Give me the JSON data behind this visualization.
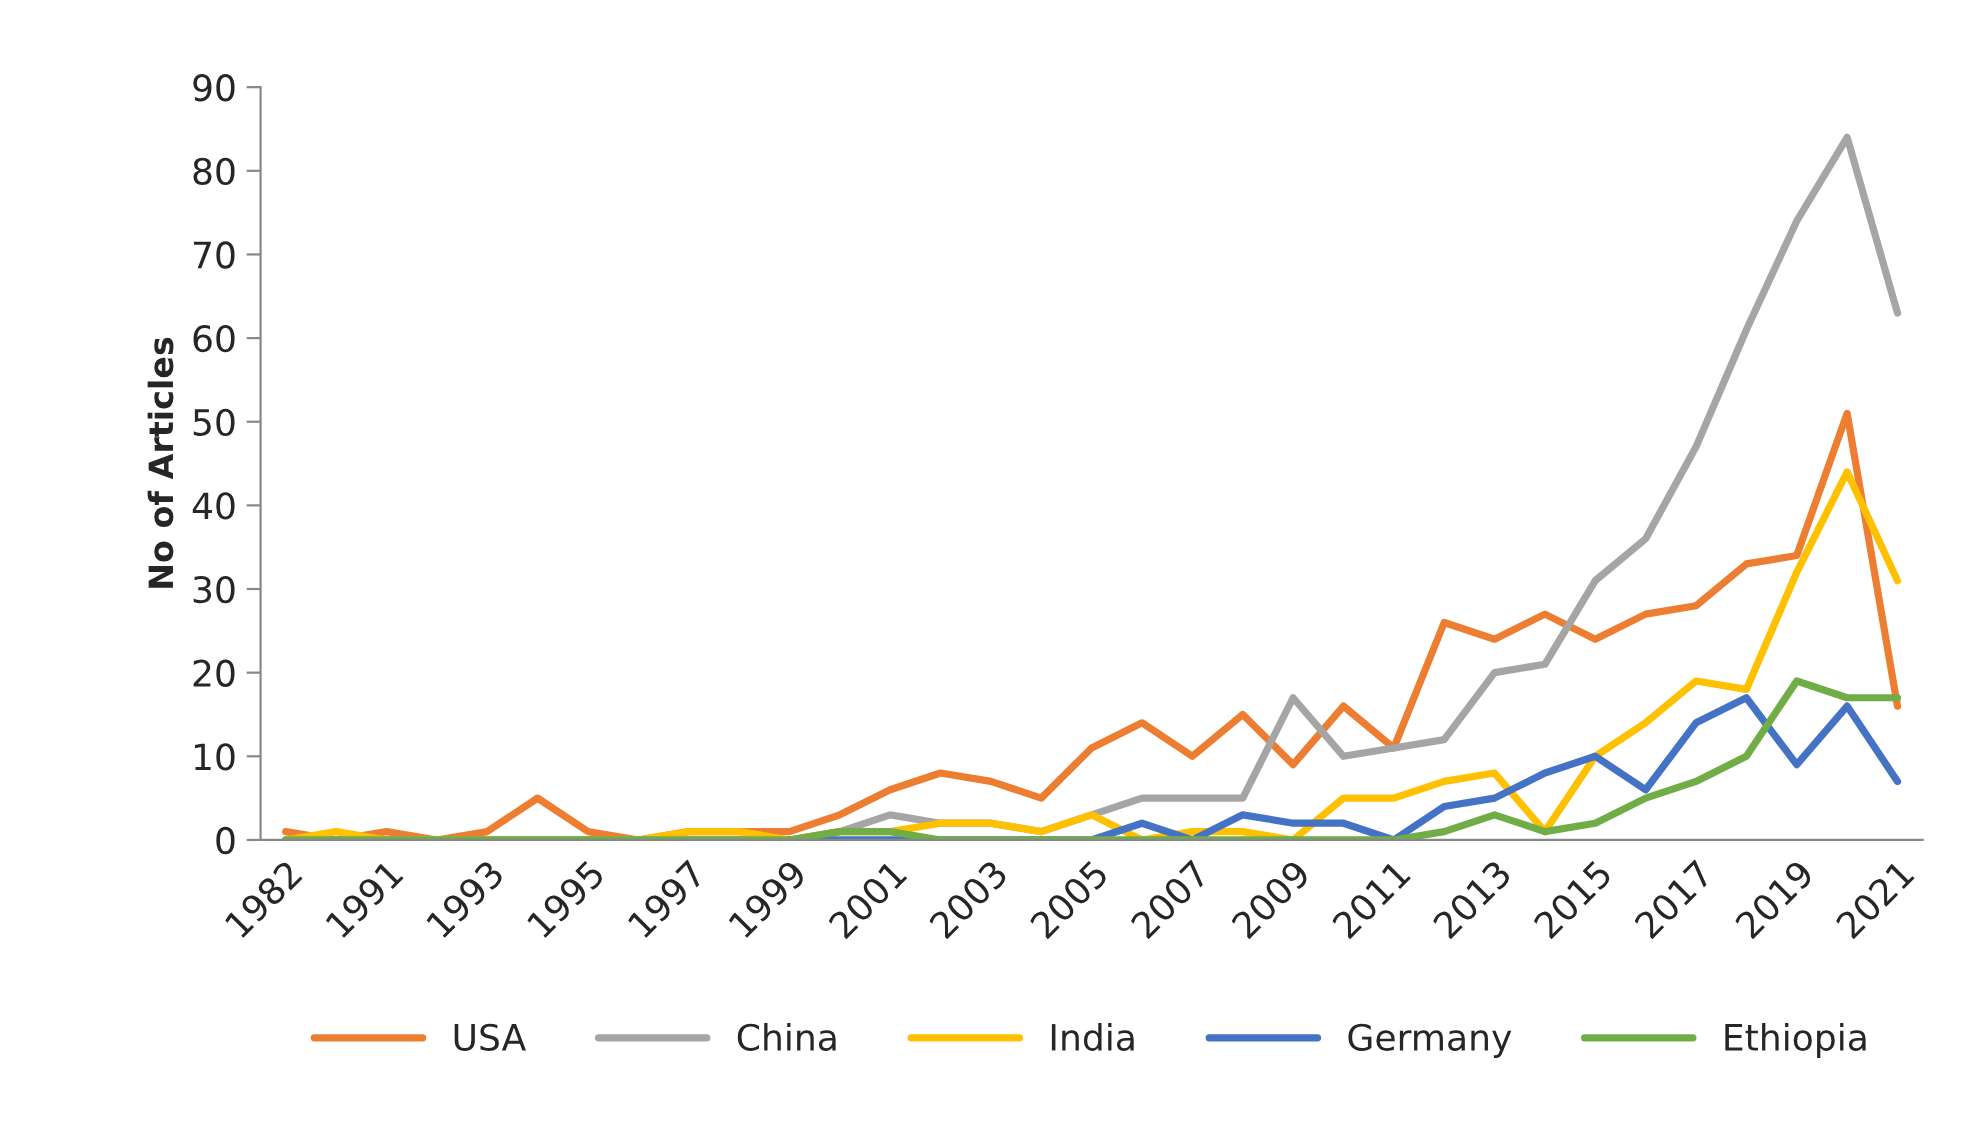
{
  "chart_data": {
    "type": "line",
    "ylabel": "No of Articles",
    "categories": [
      "1982",
      null,
      "1991",
      null,
      "1993",
      null,
      "1995",
      null,
      "1997",
      null,
      "1999",
      null,
      "2001",
      null,
      "2003",
      null,
      "2005",
      null,
      "2007",
      null,
      "2009",
      null,
      "2011",
      null,
      "2013",
      null,
      "2015",
      null,
      "2017",
      null,
      "2019",
      null,
      "2021"
    ],
    "series": [
      {
        "name": "USA",
        "color": "#ed7d31",
        "values": [
          1,
          0,
          1,
          0,
          1,
          5,
          1,
          0,
          1,
          1,
          1,
          3,
          6,
          8,
          7,
          5,
          11,
          14,
          10,
          15,
          9,
          16,
          11,
          26,
          24,
          27,
          24,
          27,
          28,
          33,
          34,
          51,
          16
        ]
      },
      {
        "name": "China",
        "color": "#a5a5a5",
        "values": [
          0,
          0,
          0,
          0,
          0,
          0,
          0,
          0,
          0,
          0,
          0,
          1,
          3,
          2,
          2,
          1,
          3,
          5,
          5,
          5,
          17,
          10,
          11,
          12,
          20,
          21,
          31,
          36,
          47,
          61,
          74,
          84,
          63
        ]
      },
      {
        "name": "India",
        "color": "#ffc000",
        "values": [
          0,
          1,
          0,
          0,
          0,
          0,
          0,
          0,
          1,
          1,
          0,
          1,
          1,
          2,
          2,
          1,
          3,
          0,
          1,
          1,
          0,
          5,
          5,
          7,
          8,
          1,
          10,
          14,
          19,
          18,
          32,
          44,
          31
        ]
      },
      {
        "name": "Germany",
        "color": "#4472c4",
        "values": [
          null,
          null,
          null,
          null,
          null,
          null,
          null,
          null,
          null,
          null,
          0,
          0,
          0,
          0,
          0,
          0,
          0,
          2,
          0,
          3,
          2,
          2,
          0,
          4,
          5,
          8,
          10,
          6,
          14,
          17,
          9,
          16,
          7
        ]
      },
      {
        "name": "Ethiopia",
        "color": "#70ad47",
        "values": [
          0,
          0,
          0,
          0,
          0,
          0,
          0,
          0,
          0,
          0,
          0,
          1,
          1,
          0,
          0,
          0,
          0,
          0,
          0,
          0,
          0,
          0,
          0,
          1,
          3,
          1,
          2,
          5,
          7,
          10,
          19,
          17,
          17
        ]
      }
    ],
    "ylim": [
      0,
      90
    ],
    "yticks": [
      0,
      10,
      20,
      30,
      40,
      50,
      60,
      70,
      80,
      90
    ],
    "grid": false,
    "legend": "bottom"
  }
}
